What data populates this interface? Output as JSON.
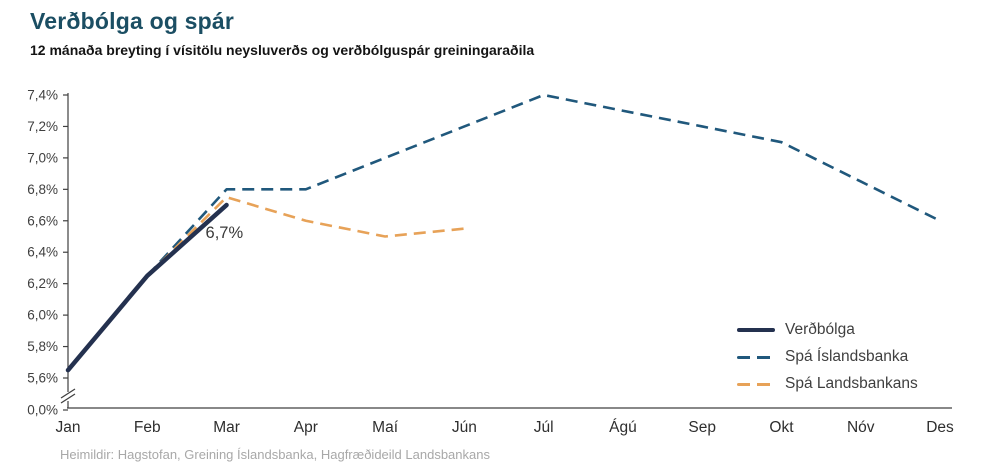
{
  "chart_data": {
    "type": "line",
    "title": "Verðbólga og spár",
    "subtitle": "12 mánaða breyting í vísitölu neysluverðs og verðbólguspár greiningaraðila",
    "categories": [
      "Jan",
      "Feb",
      "Mar",
      "Apr",
      "Maí",
      "Jún",
      "Júl",
      "Ágú",
      "Sep",
      "Okt",
      "Nóv",
      "Des"
    ],
    "series": [
      {
        "name": "Verðbólga",
        "style": "solid",
        "color": "#24314f",
        "width": 4.5,
        "values": [
          5.65,
          6.25,
          6.7,
          null,
          null,
          null,
          null,
          null,
          null,
          null,
          null,
          null
        ]
      },
      {
        "name": "Spá Íslandsbanka",
        "style": "dashed",
        "color": "#20587c",
        "width": 2.6,
        "values": [
          null,
          6.25,
          6.8,
          6.8,
          7.0,
          7.2,
          7.4,
          7.3,
          7.2,
          7.1,
          6.85,
          6.6
        ]
      },
      {
        "name": "Spá Landsbankans",
        "style": "dashed",
        "color": "#e7a258",
        "width": 2.6,
        "values": [
          null,
          6.25,
          6.75,
          6.6,
          6.5,
          6.55,
          null,
          null,
          null,
          null,
          null,
          null
        ]
      }
    ],
    "y_ticks": [
      "7,4%",
      "7,2%",
      "7,0%",
      "6,8%",
      "6,6%",
      "6,4%",
      "6,2%",
      "6,0%",
      "5,8%",
      "5,6%",
      "0,0%"
    ],
    "y_axis": {
      "min": 5.6,
      "max": 7.4,
      "axis_break": true,
      "unit": "%"
    },
    "grid": false,
    "legend_position": "inside-bottom-right",
    "annotation": {
      "text": "6,7%",
      "x_index": 2,
      "value": 6.7
    }
  },
  "footer": {
    "text": "Heimildir: Hagstofan, Greining Íslandsbanka, Hagfræðideild Landsbankans"
  },
  "colors": {
    "title": "#1b4e63",
    "axis": "#404040",
    "actual_line": "#24314f",
    "islandsbanki_forecast": "#20587c",
    "landsbankinn_forecast": "#e7a258",
    "footer_text": "#a8a8a8"
  }
}
